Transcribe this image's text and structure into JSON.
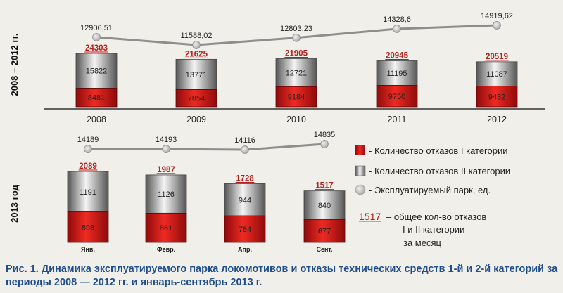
{
  "chart_data": [
    {
      "type": "bar",
      "stacked": true,
      "period_label": "2008 – 2012 гг.",
      "categories": [
        "2008",
        "2009",
        "2010",
        "2011",
        "2012"
      ],
      "series": [
        {
          "name": "Количество отказов I категории",
          "color": "#d41515",
          "values": [
            8481,
            7854,
            9184,
            9750,
            9432
          ]
        },
        {
          "name": "Количество отказов II категории",
          "color": "#c8c8c8",
          "values": [
            15822,
            13771,
            12721,
            11195,
            11087
          ]
        }
      ],
      "totals": [
        24303,
        21625,
        21905,
        20945,
        20519
      ],
      "line": {
        "name": "Эксплуатируемый парк, ед.",
        "labels": [
          "12906,51",
          "11588,02",
          "12803,23",
          "14328,6",
          "14919,62"
        ],
        "values": [
          12906.51,
          11588.02,
          12803.23,
          14328.6,
          14919.62
        ]
      }
    },
    {
      "type": "bar",
      "stacked": true,
      "period_label": "2013 год",
      "categories": [
        "Янв.",
        "Февр.",
        "Апр.",
        "Сент."
      ],
      "series": [
        {
          "name": "Количество отказов I категории",
          "color": "#d41515",
          "values": [
            898,
            861,
            784,
            677
          ]
        },
        {
          "name": "Количество отказов II категории",
          "color": "#c8c8c8",
          "values": [
            1191,
            1126,
            944,
            840
          ]
        }
      ],
      "totals": [
        2089,
        1987,
        1728,
        1517
      ],
      "line": {
        "name": "Эксплуатируемый парк, ед.",
        "labels": [
          "14189",
          "14193",
          "14116",
          "14835"
        ],
        "values": [
          14189,
          14193,
          14116,
          14835
        ]
      }
    }
  ],
  "legend": {
    "cat1": "- Количество отказов  I категории",
    "cat2": "- Количество отказов II категории",
    "park": "- Эксплуатируемый парк, ед.",
    "note_value": "1517",
    "note_line1": "– общее кол-во отказов",
    "note_line2": "I и II категории",
    "note_line3": "за месяц"
  },
  "caption": "Рис. 1. Динамика эксплуатируемого парка локомотивов и отказы технических средств 1-й и 2-й категорий за периоды 2008 — 2012 гг. и январь-сентябрь 2013 г."
}
